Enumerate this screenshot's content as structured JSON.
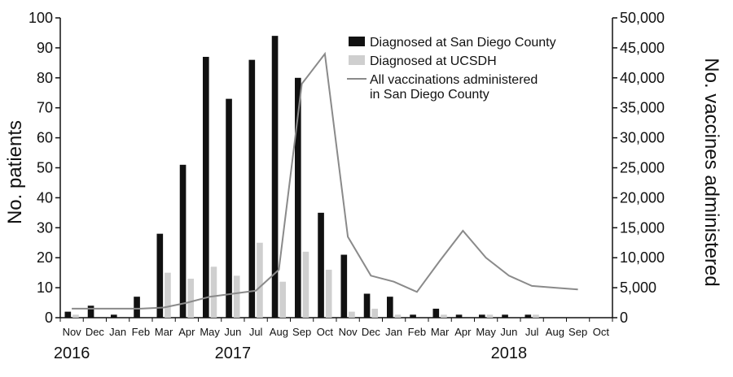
{
  "chart_data": {
    "type": "bar",
    "categories": [
      "Nov",
      "Dec",
      "Jan",
      "Feb",
      "Mar",
      "Apr",
      "May",
      "Jun",
      "Jul",
      "Aug",
      "Sep",
      "Oct",
      "Nov",
      "Dec",
      "Jan",
      "Feb",
      "Mar",
      "Apr",
      "May",
      "Jun",
      "Jul",
      "Aug",
      "Sep",
      "Oct"
    ],
    "years": [
      {
        "label": "2016",
        "category_index": 0
      },
      {
        "label": "2017",
        "category_index": 7
      },
      {
        "label": "2018",
        "category_index": 19
      }
    ],
    "series": [
      {
        "name": "Diagnosed at San Diego County",
        "type": "bar",
        "axis": "left",
        "color": "#111111",
        "values": [
          2,
          4,
          1,
          7,
          28,
          51,
          87,
          73,
          86,
          94,
          80,
          35,
          21,
          8,
          7,
          1,
          3,
          1,
          1,
          1,
          1,
          0,
          0,
          0
        ]
      },
      {
        "name": "Diagnosed at UCSDH",
        "type": "bar",
        "axis": "left",
        "color": "#cfcfcf",
        "values": [
          1,
          0,
          0,
          0,
          15,
          13,
          17,
          14,
          25,
          12,
          22,
          16,
          2,
          3,
          1,
          0,
          1,
          0,
          1,
          0,
          1,
          0,
          0,
          0
        ]
      },
      {
        "name": "All vaccinations administered in San Diego County",
        "type": "line",
        "axis": "right",
        "color": "#8a8a8a",
        "values": [
          1500,
          1500,
          1500,
          1500,
          1700,
          2500,
          3500,
          4000,
          4500,
          8000,
          39000,
          44000,
          13500,
          7000,
          6000,
          4300,
          9500,
          14500,
          10000,
          7000,
          5300,
          5000,
          4700,
          null
        ]
      }
    ],
    "ylabel": "No. patients",
    "y2label": "No. vaccines administered",
    "ylim": [
      0,
      100
    ],
    "y2lim": [
      0,
      50000
    ],
    "yticks": [
      0,
      10,
      20,
      30,
      40,
      50,
      60,
      70,
      80,
      90,
      100
    ],
    "y2ticks": [
      "0",
      "5,000",
      "10,000",
      "15,000",
      "20,000",
      "25,000",
      "30,000",
      "35,000",
      "40,000",
      "45,000",
      "50,000"
    ],
    "legend_position": "top-right",
    "legend_labels": {
      "county": "Diagnosed at San Diego County",
      "ucsdh": "Diagnosed at UCSDH",
      "vacc_line1": "All vaccinations administered",
      "vacc_line2": "in San Diego County"
    }
  }
}
